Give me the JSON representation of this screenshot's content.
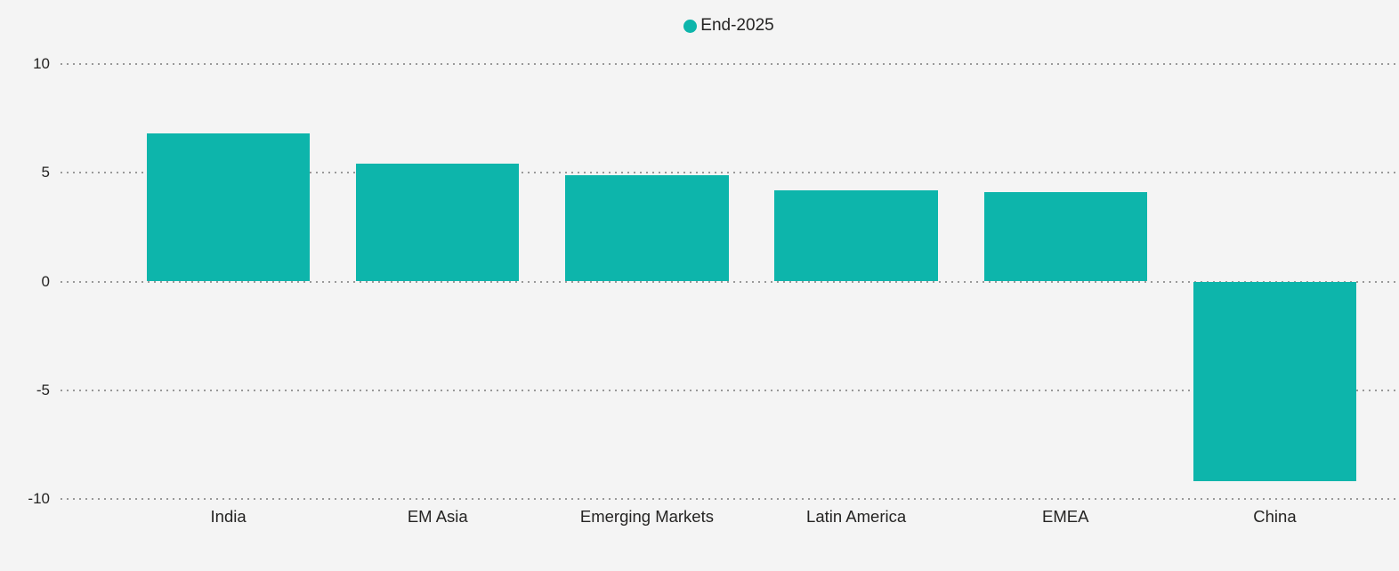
{
  "app": {
    "background_color": "#f4f4f4",
    "text_color": "#252423"
  },
  "legend": {
    "label": "End-2025",
    "marker": "circle",
    "marker_color": "#0db5ab"
  },
  "chart_data": {
    "type": "bar",
    "title": "",
    "categories": [
      "India",
      "EM Asia",
      "Emerging Markets",
      "Latin America",
      "EMEA",
      "China"
    ],
    "series": [
      {
        "name": "End-2025",
        "color": "#0db5ab",
        "values": [
          6.8,
          5.4,
          4.9,
          4.2,
          4.1,
          -9.2
        ]
      }
    ],
    "ylim": [
      -10,
      10
    ],
    "yticks": [
      10,
      5,
      0,
      -5,
      -10
    ],
    "xlabel": "",
    "ylabel": "",
    "legend_position": "top-center",
    "grid": {
      "orientation": "horizontal",
      "style": "dotted",
      "color": "#999999"
    },
    "bar_gap_ratio": 0.22
  }
}
